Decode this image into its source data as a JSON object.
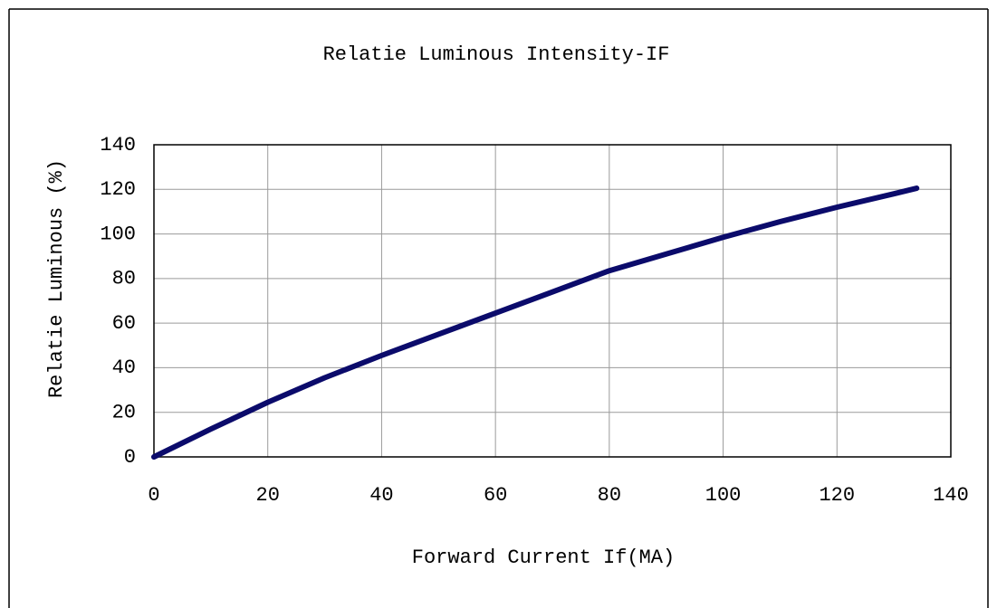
{
  "chart_data": {
    "type": "line",
    "title": "Relatie Luminous Intensity-IF",
    "x_label": "Forward Current If(MA)",
    "y_label": "Relatie Luminous (%)",
    "x": [
      0,
      10,
      20,
      30,
      40,
      50,
      60,
      70,
      80,
      90,
      100,
      110,
      120,
      130,
      134
    ],
    "series": [
      {
        "name": "Relatie Luminous",
        "color": "#0b0b6b",
        "values": [
          0,
          12.5,
          24.5,
          35.5,
          45.5,
          55,
          64.5,
          74,
          83.5,
          91,
          98.5,
          105.5,
          112,
          118,
          120.5
        ]
      }
    ],
    "xlim": [
      0,
      140
    ],
    "xticks": [
      0,
      20,
      40,
      60,
      80,
      100,
      120,
      140
    ],
    "ylim": [
      0,
      140
    ],
    "yticks": [
      0,
      20,
      40,
      60,
      80,
      100,
      120,
      140
    ],
    "grid": true
  }
}
